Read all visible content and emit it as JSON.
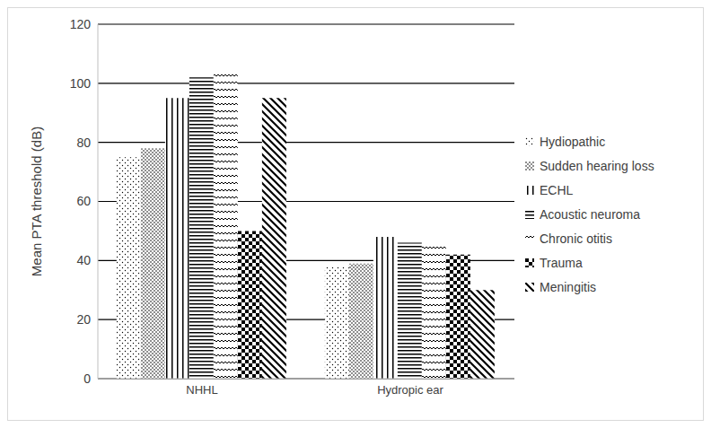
{
  "chart_data": {
    "type": "bar",
    "categories": [
      "NHHL",
      "Hydropic ear"
    ],
    "y_label": "Mean PTA threshold (dB)",
    "ylim": [
      0,
      120
    ],
    "yticks": [
      0,
      20,
      40,
      60,
      80,
      100,
      120
    ],
    "grid": true,
    "legend": "right",
    "series": [
      {
        "name": "Hydiopathic",
        "color": "#000000",
        "values": [
          75,
          38
        ]
      },
      {
        "name": "Sudden hearing loss",
        "color": "#000000",
        "values": [
          78,
          39
        ]
      },
      {
        "name": "ECHL",
        "color": "#000000",
        "values": [
          95,
          48
        ]
      },
      {
        "name": "Acoustic  neuroma",
        "color": "#000000",
        "values": [
          102,
          46
        ]
      },
      {
        "name": "Chronic otitis",
        "color": "#000000",
        "values": [
          104,
          46
        ]
      },
      {
        "name": "Trauma",
        "color": "#000000",
        "values": [
          50,
          42
        ]
      },
      {
        "name": "Meningitis",
        "color": "#000000",
        "values": [
          95,
          30
        ]
      }
    ]
  }
}
